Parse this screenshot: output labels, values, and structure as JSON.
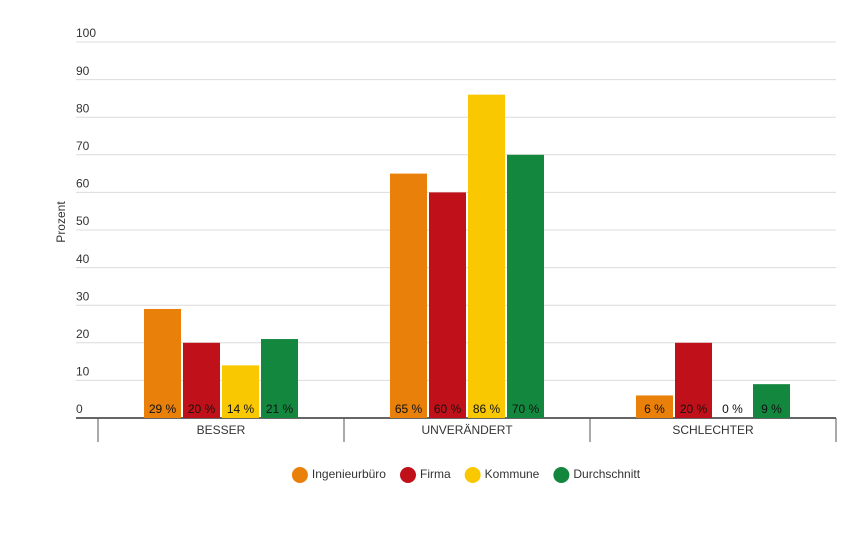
{
  "chart_data": {
    "type": "bar",
    "y_label": "Prozent",
    "categories": [
      "BESSER",
      "UNVERÄNDERT",
      "SCHLECHTER"
    ],
    "series": [
      {
        "name": "Ingenieurbüro",
        "color": "#e8800a",
        "values": [
          29,
          65,
          6
        ],
        "value_labels": [
          "29 %",
          "65 %",
          "6 %"
        ]
      },
      {
        "name": "Firma",
        "color": "#c0111a",
        "values": [
          20,
          60,
          20
        ],
        "value_labels": [
          "20 %",
          "60 %",
          "20 %"
        ]
      },
      {
        "name": "Kommune",
        "color": "#f9c800",
        "values": [
          14,
          86,
          0
        ],
        "value_labels": [
          "14 %",
          "86 %",
          "0 %"
        ]
      },
      {
        "name": "Durchschnitt",
        "color": "#14873f",
        "values": [
          21,
          70,
          9
        ],
        "value_labels": [
          "21 %",
          "70 %",
          "9 %"
        ]
      }
    ],
    "ylim": [
      0,
      100
    ],
    "yticks": [
      0,
      10,
      20,
      30,
      40,
      50,
      60,
      70,
      80,
      90,
      100
    ],
    "grid": true,
    "legend": "bottom"
  }
}
